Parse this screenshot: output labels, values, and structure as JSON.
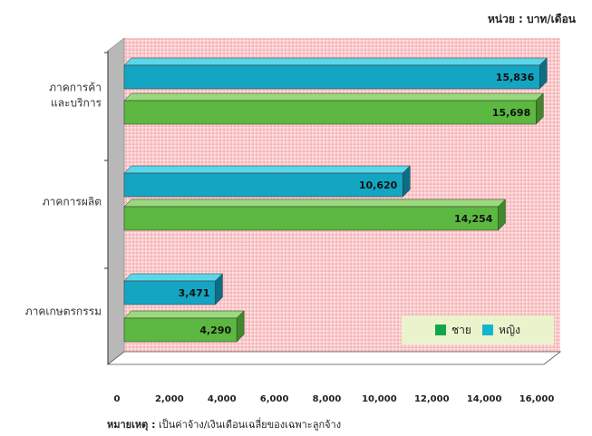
{
  "unit": "หน่วย : บาท/เดือน",
  "legend": {
    "male": "ชาย",
    "female": "หญิง"
  },
  "note": {
    "label": "หมายเหตุ :",
    "text": "เป็นค่าจ้าง/เงินเดือนเฉลี่ยของเฉพาะลูกจ้าง"
  },
  "colors": {
    "male": "#5cb840",
    "female": "#14a5c2",
    "background": "#f7b3b5"
  },
  "chart_data": {
    "type": "bar",
    "orientation": "horizontal",
    "categories": [
      [
        "ภาคการค้า",
        "และบริการ"
      ],
      [
        "ภาคการผลิต"
      ],
      [
        "ภาคเกษตรกรรม"
      ]
    ],
    "series": [
      {
        "name": "หญิง",
        "values": [
          15836,
          10620,
          3471
        ]
      },
      {
        "name": "ชาย",
        "values": [
          15698,
          14254,
          4290
        ]
      }
    ],
    "value_labels": [
      [
        "15,836",
        "10,620",
        "3,471"
      ],
      [
        "15,698",
        "14,254",
        "4,290"
      ]
    ],
    "xlim": [
      0,
      16000
    ],
    "xticks": [
      "0",
      "2,000",
      "4,000",
      "6,000",
      "8,000",
      "10,000",
      "12,000",
      "14,000",
      "16,000"
    ],
    "legend_position": "bottom-right",
    "grid": false
  }
}
